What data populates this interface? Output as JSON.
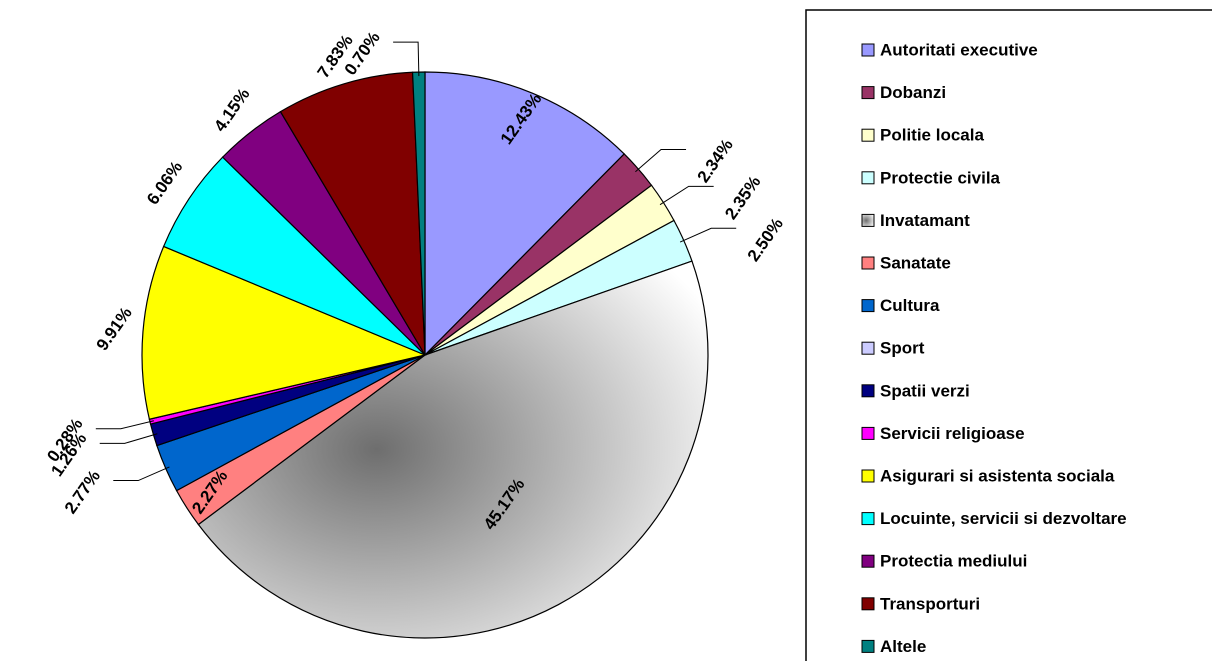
{
  "chart_data": {
    "type": "pie",
    "categories": [
      "Autoritati executive",
      "Dobanzi",
      "Politie locala",
      "Protectie civila",
      "Invatamant",
      "Sanatate",
      "Cultura",
      "Sport",
      "Spatii verzi",
      "Servicii religioase",
      "Asigurari si asistenta sociala",
      "Locuinte, servicii si dezvoltare",
      "Protectia mediului",
      "Transporturi",
      "Altele"
    ],
    "values": [
      12.43,
      2.34,
      2.35,
      2.5,
      45.17,
      2.27,
      2.77,
      0,
      1.26,
      0.28,
      9.91,
      6.06,
      4.15,
      7.83,
      0.7
    ],
    "value_labels": [
      "12.43%",
      "2.34%",
      "2.35%",
      "2.50%",
      "45.17%",
      "2.27%",
      "2.77%",
      null,
      "1.26%",
      "0.28%",
      "9.91%",
      "6.06%",
      "4.15%",
      "7.83%",
      "0.70%"
    ],
    "colors": [
      "#9999ff",
      "#993366",
      "#ffffcc",
      "#ccffff",
      "#b0b0b0",
      "#ff8080",
      "#0066cc",
      "#ccccff",
      "#000080",
      "#ff00ff",
      "#ffff00",
      "#00ffff",
      "#800080",
      "#800000",
      "#008080"
    ],
    "legend": "right"
  }
}
